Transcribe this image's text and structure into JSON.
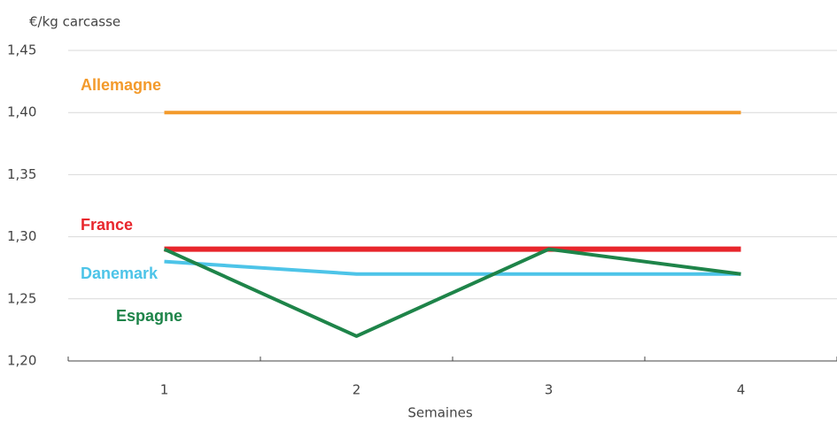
{
  "chart_data": {
    "type": "line",
    "y_label": "€/kg carcasse",
    "x_label": "Semaines",
    "categories": [
      "1",
      "2",
      "3",
      "4"
    ],
    "series": [
      {
        "name": "Allemagne",
        "color": "#f39a2b",
        "values": [
          1.4,
          1.4,
          1.4,
          1.4
        ]
      },
      {
        "name": "France",
        "color": "#e8262c",
        "values": [
          1.29,
          1.29,
          1.29,
          1.29
        ]
      },
      {
        "name": "Danemark",
        "color": "#4dc4e8",
        "values": [
          1.28,
          1.27,
          1.27,
          1.27
        ]
      },
      {
        "name": "Espagne",
        "color": "#1e8449",
        "values": [
          1.29,
          1.22,
          1.29,
          1.27
        ]
      }
    ],
    "ylim": [
      1.2,
      1.45
    ],
    "yticks": [
      {
        "value": 1.2,
        "label": "1,20"
      },
      {
        "value": 1.25,
        "label": "1,25"
      },
      {
        "value": 1.3,
        "label": "1,30"
      },
      {
        "value": 1.35,
        "label": "1,35"
      },
      {
        "value": 1.4,
        "label": "1,40"
      },
      {
        "value": 1.45,
        "label": "1,45"
      }
    ],
    "grid": true
  }
}
